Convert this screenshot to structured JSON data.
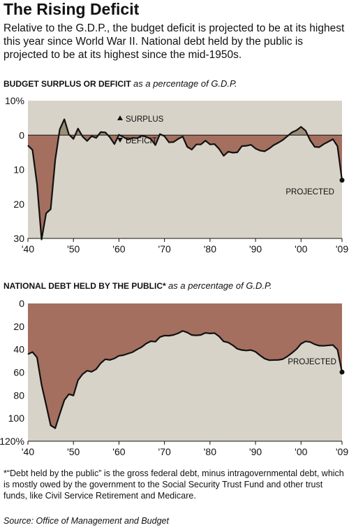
{
  "header": {
    "title": "The Rising Deficit",
    "subtitle": "Relative to the G.D.P., the budget deficit is projected to be at its highest this year since World War II. National debt held by the public is projected to be at its highest since the mid-1950s."
  },
  "colors": {
    "panel_bg": "#d8d3c8",
    "fill": "#a46f5f",
    "surplus_fill": "#9b9077",
    "line": "#111111"
  },
  "chart_data": [
    {
      "type": "area",
      "title_bold": "BUDGET SURPLUS OR DEFICIT",
      "title_italic": "as a percentage of G.D.P.",
      "xlim": [
        1940,
        2009
      ],
      "ylim": [
        10,
        -30
      ],
      "y_inverted": true,
      "x_tick_values": [
        1940,
        1950,
        1960,
        1970,
        1980,
        1990,
        2000,
        2009
      ],
      "x_tick_labels": [
        "'40",
        "'50",
        "'60",
        "'70",
        "'80",
        "'90",
        "'00",
        "'09"
      ],
      "y_tick_values": [
        10,
        0,
        -10,
        -20,
        -30
      ],
      "y_tick_labels": [
        "10%",
        "0",
        "10",
        "20",
        "30"
      ],
      "zero_line": 0,
      "legend": {
        "surplus_label": "SURPLUS",
        "deficit_label": "DEFICIT"
      },
      "annotation": {
        "label": "PROJECTED",
        "x": 2009,
        "y": -13.1
      },
      "x": [
        1940,
        1941,
        1942,
        1943,
        1944,
        1945,
        1946,
        1947,
        1948,
        1949,
        1950,
        1951,
        1952,
        1953,
        1954,
        1955,
        1956,
        1957,
        1958,
        1959,
        1960,
        1961,
        1962,
        1963,
        1964,
        1965,
        1966,
        1967,
        1968,
        1969,
        1970,
        1971,
        1972,
        1973,
        1974,
        1975,
        1976,
        1977,
        1978,
        1979,
        1980,
        1981,
        1982,
        1983,
        1984,
        1985,
        1986,
        1987,
        1988,
        1989,
        1990,
        1991,
        1992,
        1993,
        1994,
        1995,
        1996,
        1997,
        1998,
        1999,
        2000,
        2001,
        2002,
        2003,
        2004,
        2005,
        2006,
        2007,
        2008,
        2009
      ],
      "values": [
        -3.0,
        -4.3,
        -14.2,
        -30.3,
        -22.7,
        -21.5,
        -7.2,
        1.7,
        4.6,
        0.2,
        -1.1,
        1.9,
        -0.4,
        -1.7,
        -0.3,
        -0.8,
        0.9,
        0.8,
        -0.6,
        -2.6,
        0.1,
        -0.6,
        -1.3,
        -0.8,
        -0.9,
        -0.2,
        -0.5,
        -1.1,
        -2.9,
        0.3,
        -0.3,
        -2.1,
        -2.0,
        -1.1,
        -0.4,
        -3.4,
        -4.2,
        -2.7,
        -2.7,
        -1.6,
        -2.7,
        -2.6,
        -4.0,
        -6.0,
        -4.8,
        -5.1,
        -5.0,
        -3.2,
        -3.1,
        -2.8,
        -3.9,
        -4.5,
        -4.7,
        -3.9,
        -2.9,
        -2.2,
        -1.4,
        -0.3,
        0.8,
        1.4,
        2.4,
        1.3,
        -1.5,
        -3.4,
        -3.5,
        -2.6,
        -1.9,
        -1.2,
        -3.2,
        -13.1
      ]
    },
    {
      "type": "area",
      "title_bold": "NATIONAL DEBT HELD BY THE PUBLIC*",
      "title_italic": "as a percentage of G.D.P.",
      "xlim": [
        1940,
        2009
      ],
      "ylim": [
        0,
        120
      ],
      "x_tick_values": [
        1940,
        1950,
        1960,
        1970,
        1980,
        1990,
        2000,
        2009
      ],
      "x_tick_labels": [
        "'40",
        "'50",
        "'60",
        "'70",
        "'80",
        "'90",
        "'00",
        "'09"
      ],
      "y_tick_values": [
        120,
        100,
        80,
        60,
        40,
        20,
        0
      ],
      "y_tick_labels": [
        "120%",
        "100",
        "80",
        "60",
        "40",
        "20",
        "0"
      ],
      "annotation": {
        "label": "PROJECTED",
        "x": 2009,
        "y": 59.8
      },
      "x": [
        1940,
        1941,
        1942,
        1943,
        1944,
        1945,
        1946,
        1947,
        1948,
        1949,
        1950,
        1951,
        1952,
        1953,
        1954,
        1955,
        1956,
        1957,
        1958,
        1959,
        1960,
        1961,
        1962,
        1963,
        1964,
        1965,
        1966,
        1967,
        1968,
        1969,
        1970,
        1971,
        1972,
        1973,
        1974,
        1975,
        1976,
        1977,
        1978,
        1979,
        1980,
        1981,
        1982,
        1983,
        1984,
        1985,
        1986,
        1987,
        1988,
        1989,
        1990,
        1991,
        1992,
        1993,
        1994,
        1995,
        1996,
        1997,
        1998,
        1999,
        2000,
        2001,
        2002,
        2003,
        2004,
        2005,
        2006,
        2007,
        2008,
        2009
      ],
      "values": [
        44.2,
        42.3,
        47.0,
        70.9,
        88.3,
        106.2,
        108.7,
        96.2,
        84.3,
        79.0,
        80.2,
        66.9,
        61.6,
        58.6,
        59.5,
        57.2,
        52.0,
        48.6,
        49.2,
        47.9,
        45.6,
        45.0,
        43.7,
        42.4,
        40.0,
        37.9,
        34.9,
        32.9,
        33.3,
        29.3,
        28.0,
        28.1,
        27.4,
        26.0,
        23.9,
        25.3,
        27.5,
        27.8,
        27.4,
        25.6,
        26.1,
        25.8,
        28.7,
        33.1,
        34.0,
        36.4,
        39.5,
        40.6,
        41.0,
        40.6,
        42.1,
        45.3,
        48.1,
        49.4,
        49.3,
        49.2,
        48.5,
        46.1,
        43.1,
        39.8,
        35.1,
        33.0,
        33.6,
        35.6,
        36.8,
        36.9,
        36.5,
        36.2,
        40.2,
        59.8
      ]
    }
  ],
  "footnote": "*“Debt held by the public” is the gross federal debt, minus intragovernmental debt, which is mostly owed by the government to the Social Security Trust Fund and other trust funds, like Civil Service Retirement and Medicare.",
  "source": "Source: Office of Management and Budget"
}
